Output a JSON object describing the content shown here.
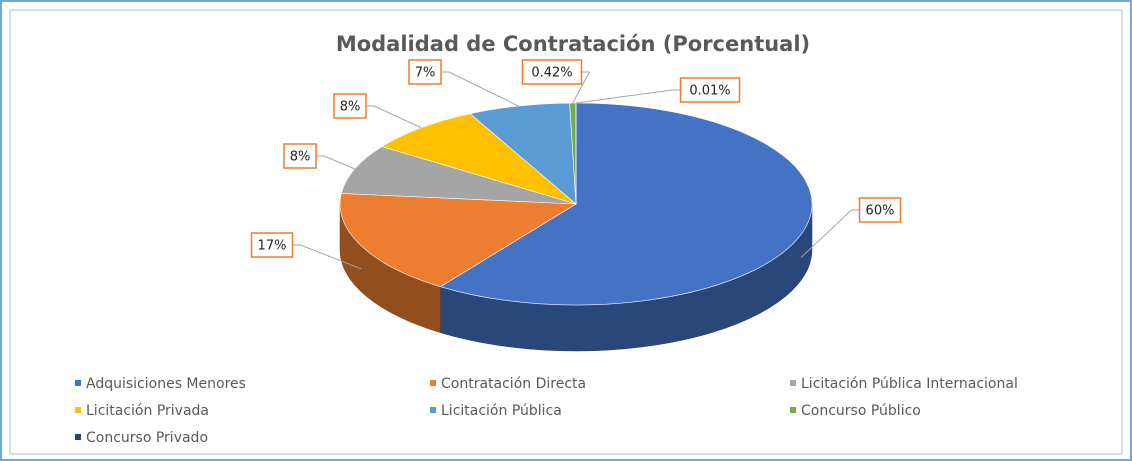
{
  "chart_data": {
    "type": "pie",
    "title": "Modalidad de Contratación  (Porcentual)",
    "categories": [
      "Adquisiciones Menores",
      "Contratación Directa",
      "Licitación Pública Internacional",
      "Licitación Privada",
      "Licitación Pública",
      "Concurso Público",
      "Concurso Privado"
    ],
    "values": [
      60,
      17,
      8,
      8,
      7,
      0.42,
      0.01
    ],
    "value_labels": [
      "60%",
      "17%",
      "8%",
      "8%",
      "7%",
      "0.42%",
      "0.01%"
    ],
    "colors": [
      "#4472c4",
      "#ed7d31",
      "#a5a5a5",
      "#ffc000",
      "#5b9bd5",
      "#70ad47",
      "#264478"
    ]
  }
}
